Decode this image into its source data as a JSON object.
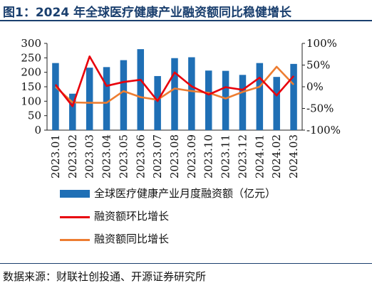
{
  "title": "图1：2024 年全球医疗健康产业融资额同比稳健增长",
  "source": "数据来源：财联社创投通、开源证券研究所",
  "colors": {
    "bar": "#1f6fb5",
    "mom": "#e8000b",
    "yoy": "#ed7d31"
  },
  "chart_data": {
    "type": "bar",
    "categories": [
      "2023.01",
      "2023.02",
      "2023.03",
      "2023.04",
      "2023.05",
      "2023.06",
      "2023.07",
      "2023.08",
      "2023.09",
      "2023.10",
      "2023.11",
      "2023.12",
      "2024.01",
      "2024.02",
      "2024.03"
    ],
    "series": [
      {
        "name": "全球医疗健康产业月度融资额（亿元）",
        "type": "bar",
        "axis": "left",
        "values": [
          232,
          126,
          216,
          218,
          242,
          280,
          187,
          249,
          252,
          206,
          205,
          191,
          232,
          184,
          229
        ]
      },
      {
        "name": "融资额环比增长",
        "type": "line",
        "axis": "right",
        "values": [
          0.05,
          -0.45,
          0.7,
          0.02,
          0.11,
          0.16,
          -0.33,
          0.33,
          0.01,
          -0.18,
          -0.01,
          -0.07,
          0.21,
          -0.2,
          0.25
        ]
      },
      {
        "name": "融资额同比增长",
        "type": "line",
        "axis": "right",
        "values": [
          0.0,
          -0.36,
          -0.37,
          -0.37,
          -0.1,
          -0.24,
          -0.3,
          -0.04,
          -0.1,
          -0.14,
          -0.27,
          -0.12,
          0.0,
          0.46,
          0.05
        ]
      }
    ],
    "left_axis": {
      "ylim": [
        0,
        300
      ],
      "ticks": [
        0,
        50,
        100,
        150,
        200,
        250,
        300
      ]
    },
    "right_axis": {
      "ylim": [
        -1.0,
        1.0
      ],
      "ticks": [
        "100%",
        "50%",
        "0%",
        "-50%",
        "-100%"
      ]
    },
    "grid": false,
    "legend_position": "bottom"
  }
}
